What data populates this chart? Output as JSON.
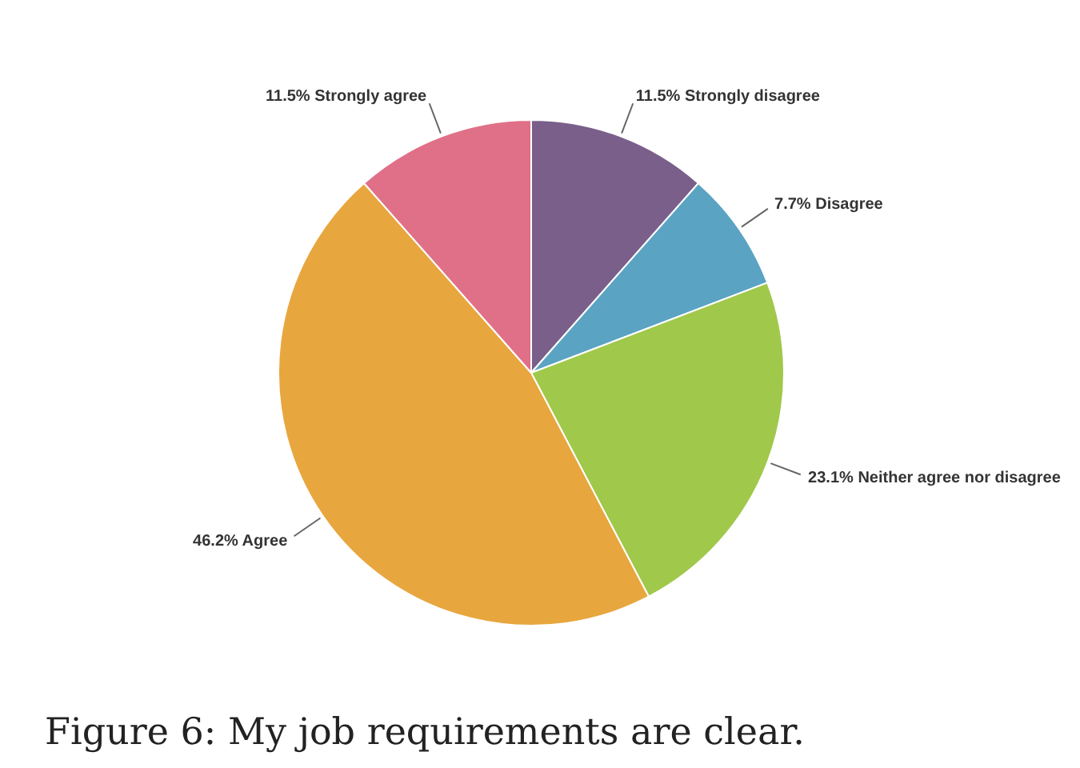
{
  "chart_data": {
    "type": "pie",
    "categories": [
      "Strongly disagree",
      "Disagree",
      "Neither agree nor disagree",
      "Agree",
      "Strongly agree"
    ],
    "values": [
      11.5,
      7.7,
      23.1,
      46.2,
      11.5
    ],
    "value_labels": [
      "11.5%",
      "7.7%",
      "23.1%",
      "46.2%",
      "11.5%"
    ],
    "colors": [
      "#7a5f8a",
      "#5aa3c3",
      "#a0c84a",
      "#e8a63e",
      "#e07088"
    ],
    "legend": false,
    "annotations": [
      "Figure 6: My job requirements are clear."
    ]
  }
}
